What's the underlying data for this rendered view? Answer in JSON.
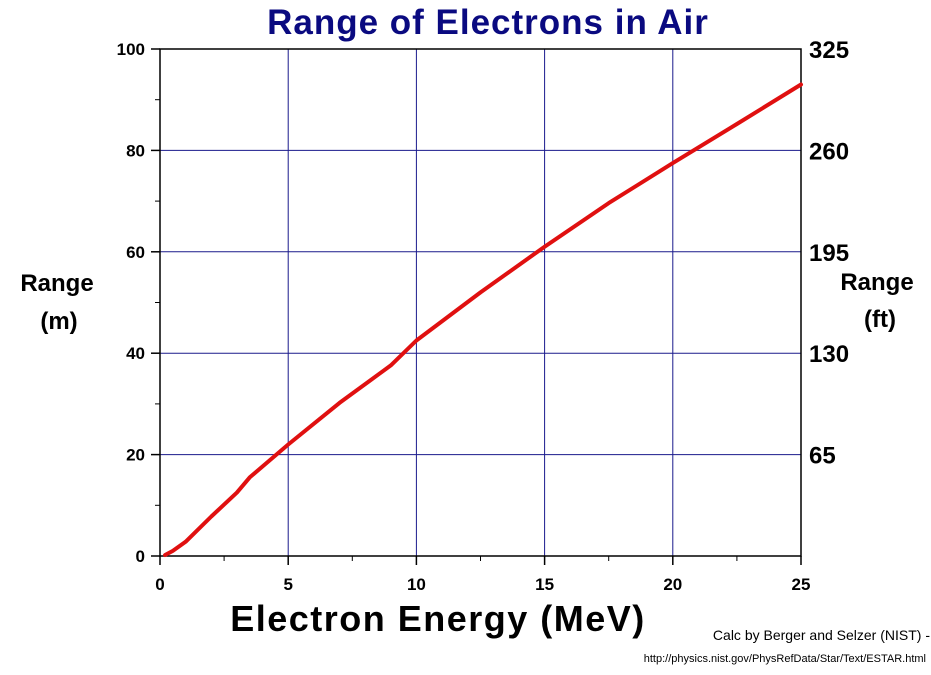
{
  "chart_data": {
    "type": "line",
    "title": "Range of Electrons in Air",
    "xlabel": "Electron Energy (MeV)",
    "ylabel_left": [
      "Range",
      "(m)"
    ],
    "ylabel_right": [
      "Range",
      "(ft)"
    ],
    "xlim": [
      0,
      25
    ],
    "ylim": [
      0,
      100
    ],
    "x_ticks": [
      0,
      5,
      10,
      15,
      20,
      25
    ],
    "y_ticks": [
      0,
      20,
      40,
      60,
      80,
      100
    ],
    "y_right_ticks": [
      {
        "label": "65",
        "value": 20
      },
      {
        "label": "130",
        "value": 40
      },
      {
        "label": "195",
        "value": 60
      },
      {
        "label": "260",
        "value": 80
      },
      {
        "label": "325",
        "value": 100
      }
    ],
    "grid": true,
    "series": [
      {
        "color": "#e01010",
        "x": [
          0.2,
          0.5,
          1,
          2,
          3,
          3.5,
          5,
          7,
          9,
          10,
          12.5,
          15,
          17.5,
          20,
          22.5,
          25
        ],
        "y": [
          0.2,
          1,
          2.8,
          7.8,
          12.5,
          15.5,
          22,
          30.2,
          37.6,
          42.5,
          52,
          61,
          69.6,
          77.5,
          85.2,
          93
        ]
      }
    ]
  },
  "credit": {
    "line1": "Calc by Berger and Selzer (NIST) -",
    "line2": "http://physics.nist.gov/PhysRefData/Star/Text/ESTAR.html"
  }
}
